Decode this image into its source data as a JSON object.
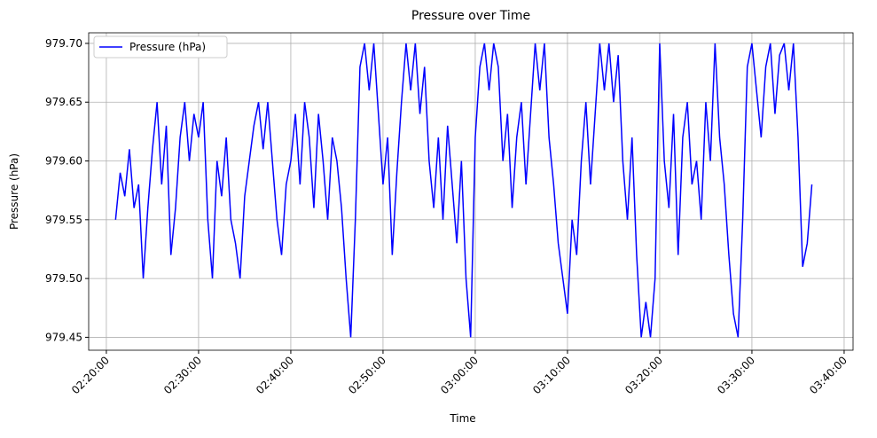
{
  "chart_data": {
    "type": "line",
    "title": "Pressure over Time",
    "x_label": "Time",
    "y_label": "Pressure (hPa)",
    "x": [
      "02:21:00",
      "02:21:30",
      "02:22:00",
      "02:22:30",
      "02:23:00",
      "02:23:30",
      "02:24:00",
      "02:24:30",
      "02:25:00",
      "02:25:30",
      "02:26:00",
      "02:26:30",
      "02:27:00",
      "02:27:30",
      "02:28:00",
      "02:28:30",
      "02:29:00",
      "02:29:30",
      "02:30:00",
      "02:30:30",
      "02:31:00",
      "02:31:30",
      "02:32:00",
      "02:32:30",
      "02:33:00",
      "02:33:30",
      "02:34:00",
      "02:34:30",
      "02:35:00",
      "02:35:30",
      "02:36:00",
      "02:36:30",
      "02:37:00",
      "02:37:30",
      "02:38:00",
      "02:38:30",
      "02:39:00",
      "02:39:30",
      "02:40:00",
      "02:40:30",
      "02:41:00",
      "02:41:30",
      "02:42:00",
      "02:42:30",
      "02:43:00",
      "02:43:30",
      "02:44:00",
      "02:44:30",
      "02:45:00",
      "02:45:30",
      "02:46:00",
      "02:46:30",
      "02:47:00",
      "02:47:30",
      "02:48:00",
      "02:48:30",
      "02:49:00",
      "02:49:30",
      "02:50:00",
      "02:50:30",
      "02:51:00",
      "02:51:30",
      "02:52:00",
      "02:52:30",
      "02:53:00",
      "02:53:30",
      "02:54:00",
      "02:54:30",
      "02:55:00",
      "02:55:30",
      "02:56:00",
      "02:56:30",
      "02:57:00",
      "02:57:30",
      "02:58:00",
      "02:58:30",
      "02:59:00",
      "02:59:30",
      "03:00:00",
      "03:00:30",
      "03:01:00",
      "03:01:30",
      "03:02:00",
      "03:02:30",
      "03:03:00",
      "03:03:30",
      "03:04:00",
      "03:04:30",
      "03:05:00",
      "03:05:30",
      "03:06:00",
      "03:06:30",
      "03:07:00",
      "03:07:30",
      "03:08:00",
      "03:08:30",
      "03:09:00",
      "03:09:30",
      "03:10:00",
      "03:10:30",
      "03:11:00",
      "03:11:30",
      "03:12:00",
      "03:12:30",
      "03:13:00",
      "03:13:30",
      "03:14:00",
      "03:14:30",
      "03:15:00",
      "03:15:30",
      "03:16:00",
      "03:16:30",
      "03:17:00",
      "03:17:30",
      "03:18:00",
      "03:18:30",
      "03:19:00",
      "03:19:30",
      "03:20:00",
      "03:20:30",
      "03:21:00",
      "03:21:30",
      "03:22:00",
      "03:22:30",
      "03:23:00",
      "03:23:30",
      "03:24:00",
      "03:24:30",
      "03:25:00",
      "03:25:30",
      "03:26:00",
      "03:26:30",
      "03:27:00",
      "03:27:30",
      "03:28:00",
      "03:28:30",
      "03:29:00",
      "03:29:30",
      "03:30:00",
      "03:30:30",
      "03:31:00",
      "03:31:30",
      "03:32:00",
      "03:32:30",
      "03:33:00",
      "03:33:30",
      "03:34:00",
      "03:34:30",
      "03:35:00",
      "03:35:30",
      "03:36:00",
      "03:36:30"
    ],
    "series": [
      {
        "name": "Pressure (hPa)",
        "color": "#0000ff",
        "values": [
          979.55,
          979.59,
          979.57,
          979.61,
          979.56,
          979.58,
          979.5,
          979.56,
          979.61,
          979.65,
          979.58,
          979.63,
          979.52,
          979.56,
          979.62,
          979.65,
          979.6,
          979.64,
          979.62,
          979.65,
          979.55,
          979.5,
          979.6,
          979.57,
          979.62,
          979.55,
          979.53,
          979.5,
          979.57,
          979.6,
          979.63,
          979.65,
          979.61,
          979.65,
          979.6,
          979.55,
          979.52,
          979.58,
          979.6,
          979.64,
          979.58,
          979.65,
          979.62,
          979.56,
          979.64,
          979.6,
          979.55,
          979.62,
          979.6,
          979.56,
          979.5,
          979.45,
          979.55,
          979.68,
          979.7,
          979.66,
          979.7,
          979.64,
          979.58,
          979.62,
          979.52,
          979.59,
          979.65,
          979.7,
          979.66,
          979.7,
          979.64,
          979.68,
          979.6,
          979.56,
          979.62,
          979.55,
          979.63,
          979.58,
          979.53,
          979.6,
          979.5,
          979.45,
          979.62,
          979.68,
          979.7,
          979.66,
          979.7,
          979.68,
          979.6,
          979.64,
          979.56,
          979.62,
          979.65,
          979.58,
          979.64,
          979.7,
          979.66,
          979.7,
          979.62,
          979.58,
          979.53,
          979.5,
          979.47,
          979.55,
          979.52,
          979.6,
          979.65,
          979.58,
          979.64,
          979.7,
          979.66,
          979.7,
          979.65,
          979.69,
          979.6,
          979.55,
          979.62,
          979.52,
          979.45,
          979.48,
          979.45,
          979.5,
          979.7,
          979.6,
          979.56,
          979.64,
          979.52,
          979.62,
          979.65,
          979.58,
          979.6,
          979.55,
          979.65,
          979.6,
          979.7,
          979.62,
          979.58,
          979.52,
          979.47,
          979.45,
          979.55,
          979.68,
          979.7,
          979.66,
          979.62,
          979.68,
          979.7,
          979.64,
          979.69,
          979.7,
          979.66,
          979.7,
          979.62,
          979.51,
          979.53,
          979.58
        ]
      }
    ],
    "xlim": [
      "02:18:05",
      "03:40:58"
    ],
    "xticks": [
      "02:20:00",
      "02:30:00",
      "02:40:00",
      "02:50:00",
      "03:00:00",
      "03:10:00",
      "03:20:00",
      "03:30:00",
      "03:40:00"
    ],
    "ylim": [
      979.439,
      979.709
    ],
    "yticks": [
      {
        "value": 979.45,
        "label": "979.45"
      },
      {
        "value": 979.5,
        "label": "979.50"
      },
      {
        "value": 979.55,
        "label": "979.55"
      },
      {
        "value": 979.6,
        "label": "979.60"
      },
      {
        "value": 979.65,
        "label": "979.65"
      },
      {
        "value": 979.7,
        "label": "979.70"
      }
    ],
    "grid": true,
    "legend": "upper left"
  }
}
